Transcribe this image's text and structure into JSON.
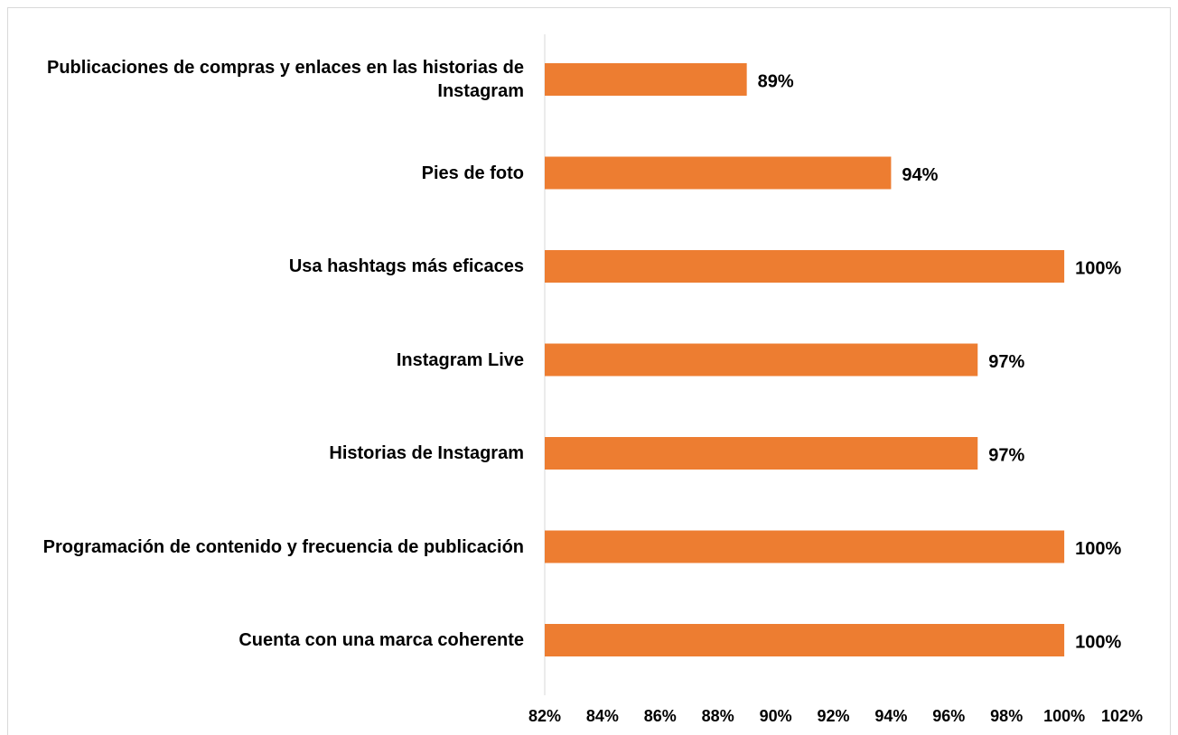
{
  "chart_data": {
    "type": "bar",
    "orientation": "horizontal",
    "categories": [
      "Publicaciones de compras y enlaces en las historias de Instagram",
      "Pies de foto",
      "Usa hashtags más eficaces",
      "Instagram Live",
      "Historias de Instagram",
      "Programación de contenido y frecuencia de publicación",
      "Cuenta con una marca coherente"
    ],
    "values": [
      89,
      94,
      100,
      97,
      97,
      100,
      100
    ],
    "value_labels": [
      "89%",
      "94%",
      "100%",
      "97%",
      "97%",
      "100%",
      "100%"
    ],
    "color": "#ED7D31",
    "xlim": [
      82,
      102
    ],
    "xticks": [
      {
        "value": 82,
        "label": "82%"
      },
      {
        "value": 84,
        "label": "84%"
      },
      {
        "value": 86,
        "label": "86%"
      },
      {
        "value": 88,
        "label": "88%"
      },
      {
        "value": 90,
        "label": "90%"
      },
      {
        "value": 92,
        "label": "92%"
      },
      {
        "value": 94,
        "label": "94%"
      },
      {
        "value": 96,
        "label": "96%"
      },
      {
        "value": 98,
        "label": "98%"
      },
      {
        "value": 100,
        "label": "100%"
      },
      {
        "value": 102,
        "label": "102%"
      }
    ],
    "grid": false
  }
}
